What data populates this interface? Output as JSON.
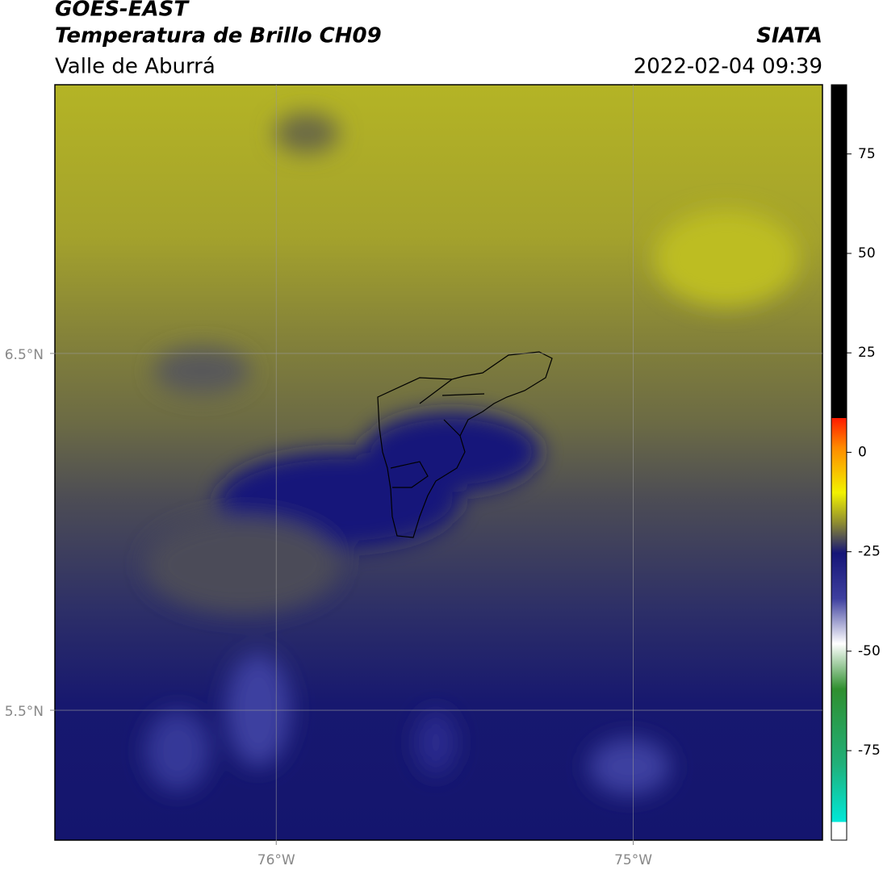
{
  "chart_data": {
    "type": "map",
    "title": "GOES-EAST",
    "subtitle": "Temperatura de Brillo CH09",
    "source": "SIATA",
    "region": "Valle de Aburrá",
    "datetime": "2022-02-04 09:39",
    "xlim": [
      -76.62,
      -74.47
    ],
    "ylim": [
      5.136,
      7.253
    ],
    "xticks": [
      {
        "value": -76,
        "label": "76°W"
      },
      {
        "value": -75,
        "label": "75°W"
      }
    ],
    "yticks": [
      {
        "value": 5.5,
        "label": "5.5°N"
      },
      {
        "value": 6.5,
        "label": "6.5°N"
      }
    ],
    "grid": true,
    "colorbar": {
      "lim": [
        -97.5,
        92.4
      ],
      "ticks": [
        -75,
        -50,
        -25,
        0,
        25,
        50,
        75
      ]
    }
  }
}
